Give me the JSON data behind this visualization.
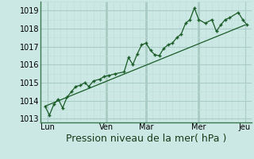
{
  "title": "",
  "xlabel": "Pression niveau de la mer( hPa )",
  "ylim": [
    1012.8,
    1019.5
  ],
  "xlim": [
    0,
    96
  ],
  "yticks": [
    1013,
    1014,
    1015,
    1016,
    1017,
    1018,
    1019
  ],
  "xtick_positions": [
    3,
    30,
    48,
    72,
    93
  ],
  "xtick_labels": [
    "Lun",
    "Ven",
    "Mar",
    "Mer",
    "Jeu"
  ],
  "bg_color": "#cce8e4",
  "grid_color_major": "#aaccc8",
  "grid_color_minor": "#c0deda",
  "line_color": "#1a5c28",
  "series1_x": [
    2,
    4,
    6,
    8,
    10,
    12,
    14,
    16,
    18,
    20,
    22,
    24,
    27,
    29,
    31,
    34,
    38,
    40,
    42,
    44,
    46,
    48,
    50,
    52,
    54,
    56,
    58,
    60,
    62,
    64,
    66,
    68,
    70,
    72,
    75,
    78,
    80,
    82,
    84,
    86,
    90,
    92,
    94
  ],
  "series1_y": [
    1013.7,
    1013.2,
    1013.8,
    1014.1,
    1013.6,
    1014.2,
    1014.5,
    1014.8,
    1014.85,
    1015.0,
    1014.8,
    1015.1,
    1015.2,
    1015.35,
    1015.4,
    1015.5,
    1015.6,
    1016.4,
    1016.0,
    1016.6,
    1017.1,
    1017.2,
    1016.8,
    1016.55,
    1016.5,
    1016.9,
    1017.1,
    1017.2,
    1017.5,
    1017.7,
    1018.3,
    1018.5,
    1019.15,
    1018.5,
    1018.3,
    1018.5,
    1017.85,
    1018.2,
    1018.5,
    1018.6,
    1018.9,
    1018.5,
    1018.2
  ],
  "series2_x": [
    2,
    93
  ],
  "series2_y": [
    1013.7,
    1018.2
  ],
  "vline_positions": [
    30,
    48,
    72
  ],
  "font_size_label": 9,
  "font_size_tick": 7
}
